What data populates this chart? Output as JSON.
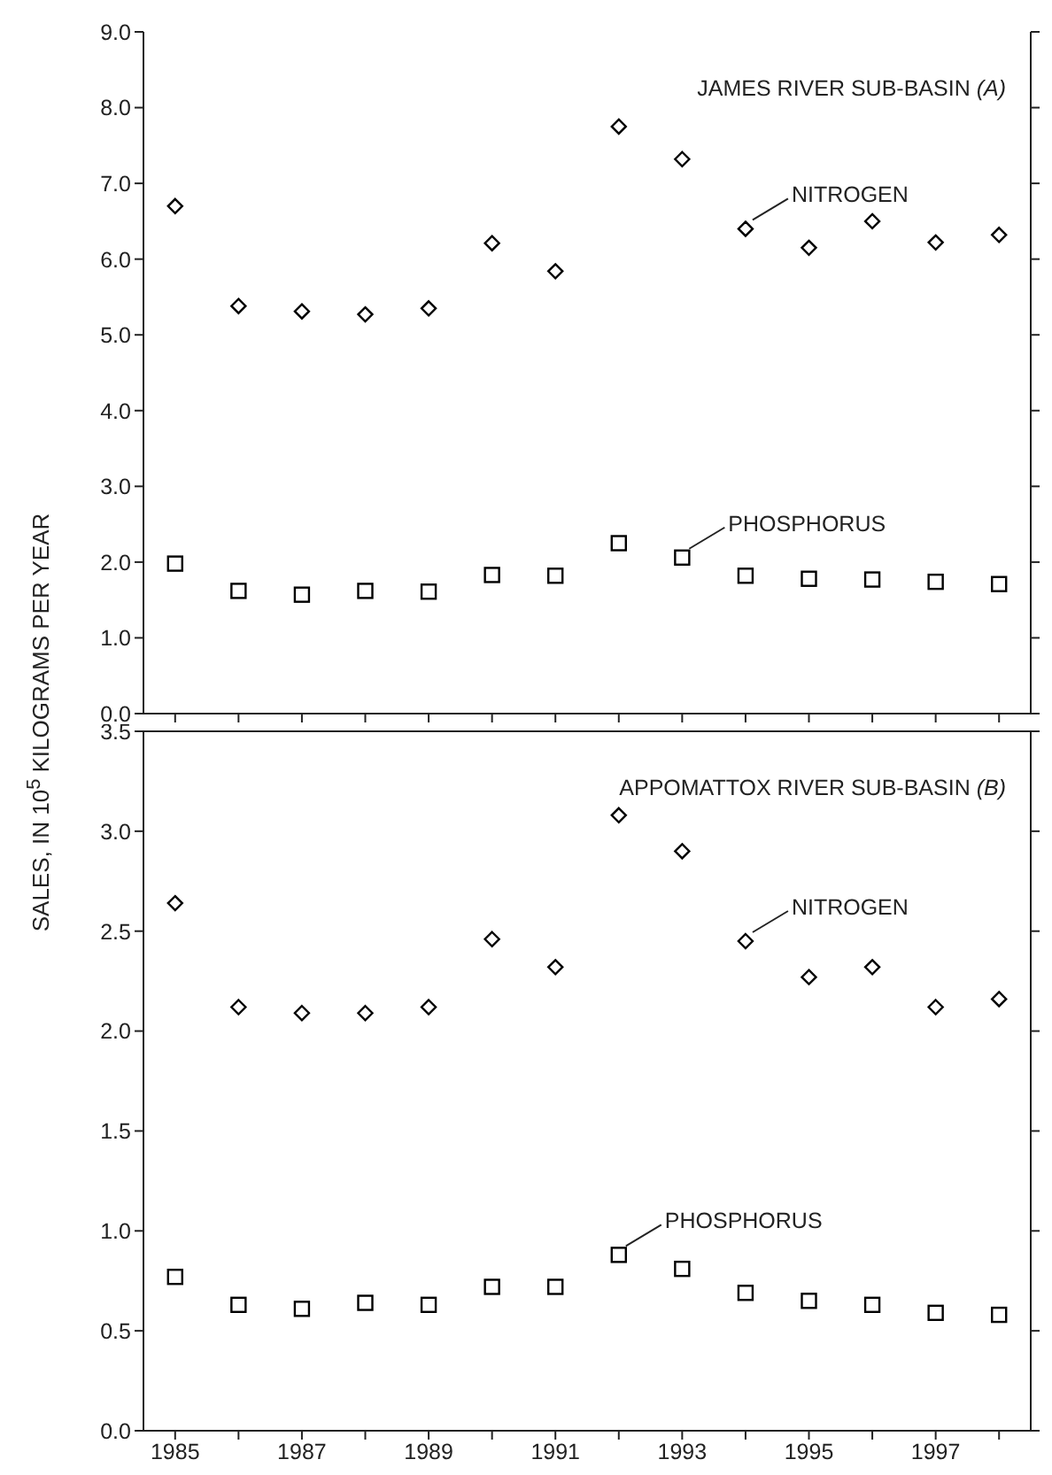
{
  "chart_data": [
    {
      "type": "scatter",
      "title": "JAMES RIVER SUB-BASIN (A)",
      "ylabel": "SALES, IN 10$^{5}$ KILOGRAMS PER YEAR",
      "x": [
        1985,
        1986,
        1987,
        1988,
        1989,
        1990,
        1991,
        1992,
        1993,
        1994,
        1995,
        1996,
        1997,
        1998
      ],
      "xlim": [
        1984.5,
        1998.5
      ],
      "xticks": [
        1985,
        {
          "value": 1986,
          "label": null
        },
        1987,
        {
          "value": 1988,
          "label": null
        },
        1989,
        {
          "value": 1990,
          "label": null
        },
        1991,
        {
          "value": 1992,
          "label": null
        },
        1993,
        {
          "value": 1994,
          "label": null
        },
        1995,
        {
          "value": 1996,
          "label": null
        },
        1997,
        {
          "value": 1998,
          "label": null
        }
      ],
      "ylim": [
        0,
        9
      ],
      "yticks": [
        {
          "value": 0,
          "label": "0.0"
        },
        {
          "value": 1,
          "label": "1.0"
        },
        {
          "value": 2,
          "label": "2.0"
        },
        {
          "value": 3,
          "label": "3.0"
        },
        {
          "value": 4,
          "label": "4.0"
        },
        {
          "value": 5,
          "label": "5.0"
        },
        {
          "value": 6,
          "label": "6.0"
        },
        {
          "value": 7,
          "label": "7.0"
        },
        {
          "value": 8,
          "label": "8.0"
        },
        {
          "value": 9,
          "label": "9.0"
        }
      ],
      "tick_labels": "y",
      "grid": false,
      "legend": false,
      "series": [
        {
          "name": "NITROGEN",
          "color": "#000000",
          "marker": "diamond",
          "values": [
            6.7,
            5.38,
            5.31,
            5.27,
            5.35,
            6.21,
            5.84,
            7.75,
            7.32,
            6.4,
            6.15,
            6.5,
            6.22,
            6.32
          ]
        },
        {
          "name": "PHOSPHORUS",
          "color": "#000000",
          "marker": "square",
          "values": [
            1.98,
            1.62,
            1.57,
            1.62,
            1.61,
            1.83,
            1.82,
            2.25,
            2.06,
            1.82,
            1.78,
            1.77,
            1.74,
            1.71
          ]
        }
      ]
    },
    {
      "type": "scatter",
      "title": "APPOMATTOX RIVER SUB-BASIN (B)",
      "x": [
        1985,
        1986,
        1987,
        1988,
        1989,
        1990,
        1991,
        1992,
        1993,
        1994,
        1995,
        1996,
        1997,
        1998
      ],
      "xlim": [
        1984.5,
        1998.5
      ],
      "xticks": [
        1985,
        {
          "value": 1986,
          "label": null
        },
        1987,
        {
          "value": 1988,
          "label": null
        },
        1989,
        {
          "value": 1990,
          "label": null
        },
        1991,
        {
          "value": 1992,
          "label": null
        },
        1993,
        {
          "value": 1994,
          "label": null
        },
        1995,
        {
          "value": 1996,
          "label": null
        },
        1997,
        {
          "value": 1998,
          "label": null
        }
      ],
      "ylim": [
        0,
        3.5
      ],
      "yticks": [
        {
          "value": 0,
          "label": "0.0"
        },
        {
          "value": 0.5,
          "label": "0.5"
        },
        {
          "value": 1,
          "label": "1.0"
        },
        {
          "value": 1.5,
          "label": "1.5"
        },
        {
          "value": 2,
          "label": "2.0"
        },
        {
          "value": 2.5,
          "label": "2.5"
        },
        {
          "value": 3,
          "label": "3.0"
        },
        {
          "value": 3.5,
          "label": "3.5"
        }
      ],
      "grid": false,
      "legend": false,
      "series": [
        {
          "name": "NITROGEN",
          "color": "#000000",
          "marker": "diamond",
          "values": [
            2.64,
            2.12,
            2.09,
            2.09,
            2.12,
            2.46,
            2.32,
            3.08,
            2.9,
            2.45,
            2.27,
            2.32,
            2.12,
            2.16
          ]
        },
        {
          "name": "PHOSPHORUS",
          "color": "#000000",
          "marker": "square",
          "values": [
            0.77,
            0.63,
            0.61,
            0.64,
            0.63,
            0.72,
            0.72,
            0.88,
            0.81,
            0.69,
            0.65,
            0.63,
            0.59,
            0.58
          ]
        }
      ]
    }
  ]
}
